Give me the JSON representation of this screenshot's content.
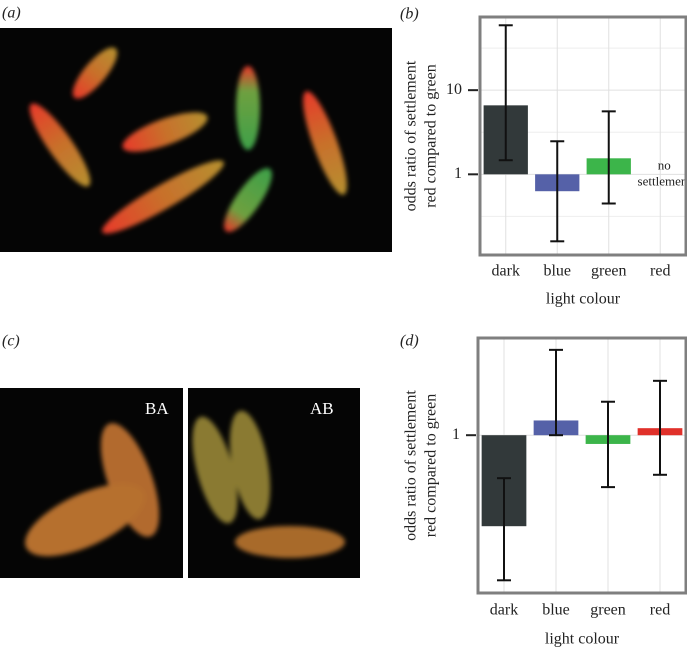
{
  "figure": {
    "photo_panels": [
      "(a)",
      "(c)"
    ],
    "photo_labels": [
      "BA",
      "AB"
    ]
  },
  "chart_data": [
    {
      "type": "bar",
      "panel": "(b)",
      "log_scale": true,
      "ylabel": [
        "odds ratio of settlement",
        "red compared to green"
      ],
      "xlabel": "light colour",
      "categories": [
        "dark",
        "blue",
        "green",
        "red"
      ],
      "values": [
        6.6,
        0.63,
        1.55,
        null
      ],
      "ci_lower": [
        1.47,
        0.16,
        0.45,
        null
      ],
      "ci_upper": [
        59,
        2.47,
        5.6,
        null
      ],
      "colors": [
        "#32393a",
        "#5561a8",
        "#3cb54a",
        "#e0302a"
      ],
      "baseline": 1,
      "annotation": [
        "no",
        "settlement"
      ],
      "ylim": [
        0.11,
        74
      ],
      "yticks": [
        1,
        10
      ],
      "minor_grid": [
        0.316,
        3.16,
        31.6
      ],
      "grid": true
    },
    {
      "type": "bar",
      "panel": "(d)",
      "log_scale": true,
      "ylabel": [
        "odds ratio of settlement",
        "red compared to green"
      ],
      "xlabel": "light colour",
      "categories": [
        "dark",
        "blue",
        "green",
        "red"
      ],
      "values": [
        0.47,
        1.13,
        0.93,
        1.06
      ],
      "ci_lower": [
        0.3,
        1.0,
        0.65,
        0.72
      ],
      "ci_upper": [
        0.7,
        2.03,
        1.32,
        1.57
      ],
      "colors": [
        "#32393a",
        "#5561a8",
        "#3cb54a",
        "#e0302a"
      ],
      "baseline": 1,
      "ylim": [
        0.27,
        2.24
      ],
      "yticks": [
        1
      ],
      "grid": true
    }
  ]
}
